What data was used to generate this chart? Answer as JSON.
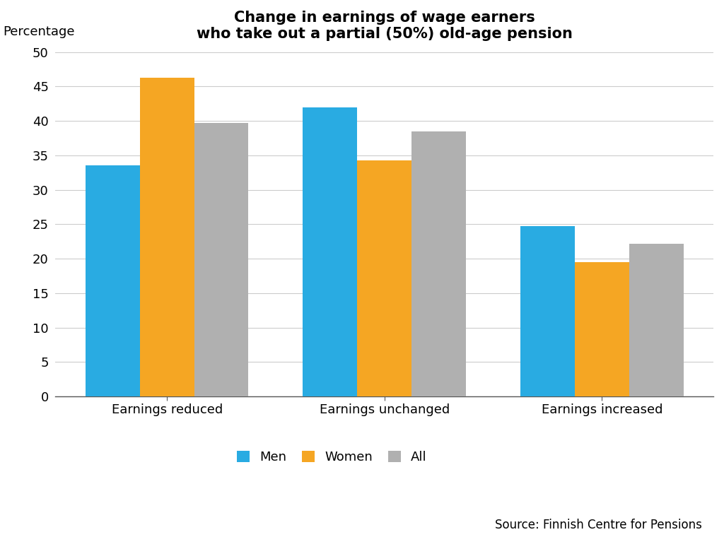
{
  "title": "Change in earnings of wage earners\nwho take out a partial (50%) old-age pension",
  "ylabel": "Percentage",
  "source": "Source: Finnish Centre for Pensions",
  "categories": [
    "Earnings reduced",
    "Earnings unchanged",
    "Earnings increased"
  ],
  "series": {
    "Men": [
      33.5,
      42.0,
      24.7
    ],
    "Women": [
      46.3,
      34.3,
      19.5
    ],
    "All": [
      39.7,
      38.5,
      22.2
    ]
  },
  "colors": {
    "Men": "#29abe2",
    "Women": "#f5a623",
    "All": "#b0b0b0"
  },
  "ylim": [
    0,
    50
  ],
  "yticks": [
    0,
    5,
    10,
    15,
    20,
    25,
    30,
    35,
    40,
    45,
    50
  ],
  "bar_width": 0.25,
  "background_color": "#ffffff",
  "title_fontsize": 15,
  "tick_fontsize": 13,
  "legend_fontsize": 13,
  "source_fontsize": 12
}
